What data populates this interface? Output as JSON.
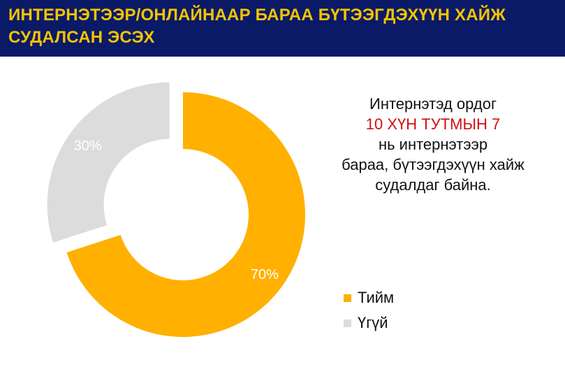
{
  "header": {
    "title": "ИНТЕРНЭТЭЭР/ОНЛАЙНААР БАРАА БҮТЭЭГДЭХҮҮН ХАЙЖ СУДАЛСАН ЭСЭХ"
  },
  "note": {
    "line1": "Интернэтэд ордог",
    "highlight": "10 ХҮН ТУТМЫН 7",
    "line3": "нь интернэтээр",
    "line4": "бараа, бүтээгдэхүүн хайж",
    "line5": "судалдаг байна."
  },
  "colors": {
    "header_bg": "#0a1a66",
    "header_text": "#f5c400",
    "yes": "#ffb000",
    "no": "#dcdcdc",
    "highlight": "#d01010"
  },
  "chart_data": {
    "type": "pie",
    "variant": "donut",
    "title": "",
    "categories": [
      "Тийм",
      "Үгүй"
    ],
    "values": [
      70,
      30
    ],
    "data_labels": [
      "70%",
      "30%"
    ],
    "legend": {
      "position": "bottom-right",
      "entries": [
        "Тийм",
        "Үгүй"
      ]
    },
    "exploded": "Үгүй"
  }
}
